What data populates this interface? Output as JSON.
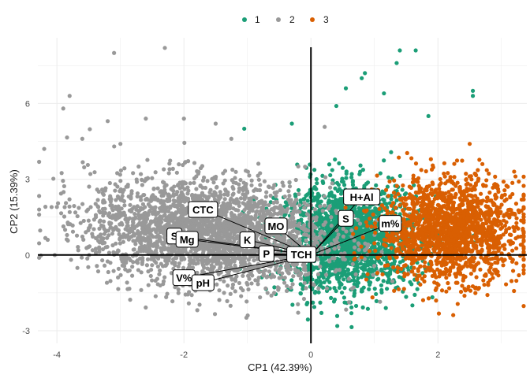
{
  "chart_data": {
    "type": "scatter",
    "xlabel": "CP1 (42.39%)",
    "ylabel": "CP2 (15.39%)",
    "xlim": [
      -4.3,
      3.4
    ],
    "ylim": [
      -3.5,
      8.6
    ],
    "x_ticks": [
      -4,
      -2,
      0,
      2
    ],
    "y_ticks": [
      -3,
      0,
      3,
      6
    ],
    "x_tick_labels": [
      "-4",
      "-2",
      "0",
      "2"
    ],
    "y_tick_labels": [
      "-3",
      "0",
      "3",
      "6"
    ],
    "grid": true,
    "legend_position": "top",
    "legend": [
      {
        "name": "1",
        "color": "#1b9e77"
      },
      {
        "name": "2",
        "color": "#999999"
      },
      {
        "name": "3",
        "color": "#d95f02"
      }
    ],
    "clusters": [
      {
        "name": "1",
        "color": "#1b9e77",
        "center": [
          0.6,
          0.7
        ],
        "spread": [
          0.55,
          1.05
        ],
        "count": 1900,
        "outliers": [
          [
            1.4,
            8.1
          ],
          [
            1.65,
            8.1
          ],
          [
            0.55,
            6.6
          ],
          [
            0.8,
            7.0
          ],
          [
            0.85,
            7.2
          ],
          [
            2.55,
            6.5
          ],
          [
            2.55,
            6.3
          ],
          [
            1.85,
            5.5
          ],
          [
            -1.05,
            5.0
          ],
          [
            1.35,
            7.6
          ],
          [
            1.15,
            6.4
          ],
          [
            -0.3,
            5.2
          ],
          [
            0.4,
            5.9
          ]
        ]
      },
      {
        "name": "2",
        "color": "#999999",
        "center": [
          -1.6,
          0.9
        ],
        "spread": [
          0.95,
          1.05
        ],
        "count": 2800,
        "outliers": [
          [
            -3.1,
            8.0
          ],
          [
            -2.3,
            8.2
          ],
          [
            -3.8,
            6.3
          ],
          [
            -3.9,
            5.8
          ],
          [
            -3.2,
            5.3
          ],
          [
            -2.6,
            5.4
          ],
          [
            -2.0,
            5.4
          ],
          [
            -4.2,
            4.2
          ],
          [
            -3.6,
            4.6
          ],
          [
            -3.0,
            4.4
          ],
          [
            -1.5,
            5.2
          ],
          [
            -4.0,
            1.9
          ]
        ]
      },
      {
        "name": "3",
        "color": "#d95f02",
        "center": [
          2.2,
          1.0
        ],
        "spread": [
          0.55,
          1.0
        ],
        "count": 1700,
        "outliers": [
          [
            2.9,
            3.1
          ],
          [
            3.2,
            3.3
          ],
          [
            2.5,
            4.4
          ],
          [
            3.1,
            2.7
          ],
          [
            2.7,
            3.6
          ]
        ]
      }
    ],
    "origin_lines": true,
    "loadings": [
      {
        "label": "CTC",
        "x": -1.7,
        "y": 1.8
      },
      {
        "label": "MO",
        "x": -0.55,
        "y": 1.15
      },
      {
        "label": "S",
        "x": -2.15,
        "y": 0.75
      },
      {
        "label": "Mg",
        "x": -1.95,
        "y": 0.62
      },
      {
        "label": "K",
        "x": -1.0,
        "y": 0.6
      },
      {
        "label": "P",
        "x": -0.7,
        "y": 0.05
      },
      {
        "label": "TCH",
        "x": -0.15,
        "y": 0.02
      },
      {
        "label": "V%",
        "x": -2.0,
        "y": -0.9
      },
      {
        "label": "pH",
        "x": -1.7,
        "y": -1.1
      },
      {
        "label": "S",
        "x": 0.55,
        "y": 1.45
      },
      {
        "label": "H+Al",
        "x": 0.8,
        "y": 2.3
      },
      {
        "label": "m%",
        "x": 1.25,
        "y": 1.25
      }
    ]
  }
}
